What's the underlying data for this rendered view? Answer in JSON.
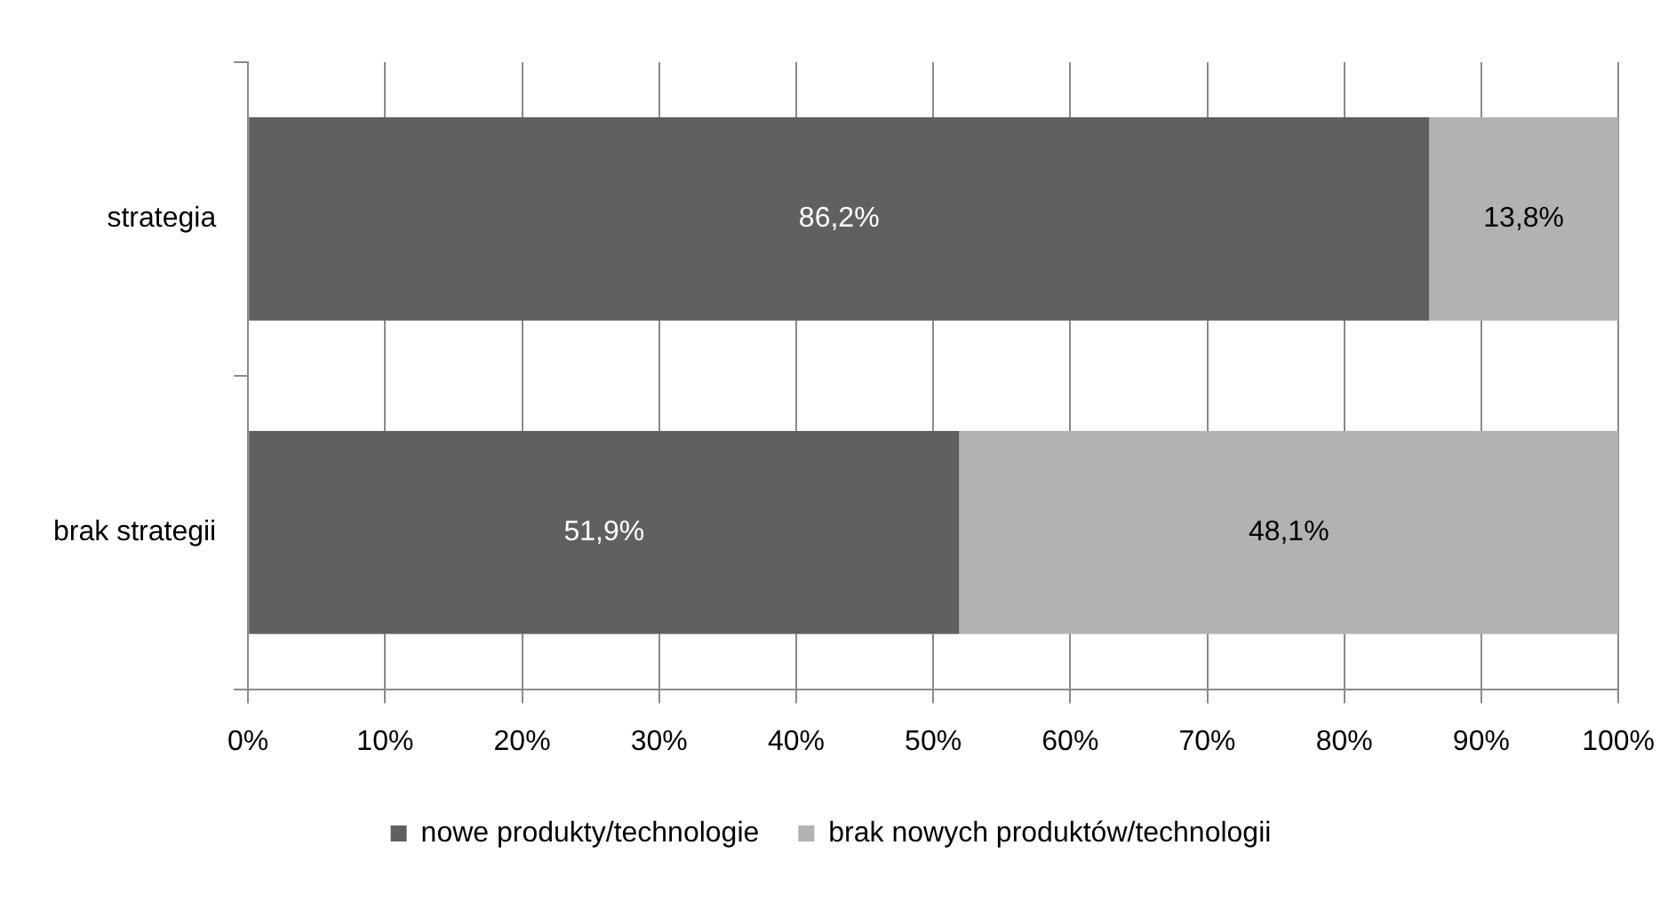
{
  "chart_data": {
    "type": "bar",
    "orientation": "horizontal",
    "stacked": true,
    "categories": [
      "strategia",
      "brak strategii"
    ],
    "series": [
      {
        "name": "nowe produkty/technologie",
        "color": "#606060",
        "values": [
          86.2,
          51.9
        ],
        "value_labels": [
          "86,2%",
          "51,9%"
        ]
      },
      {
        "name": "brak nowych produktów/technologii",
        "color": "#b2b2b2",
        "values": [
          13.8,
          48.1
        ],
        "value_labels": [
          "13,8%",
          "48,1%"
        ]
      }
    ],
    "xlim": [
      0,
      100
    ],
    "xticks": [
      {
        "value": 0,
        "label": "0%"
      },
      {
        "value": 10,
        "label": "10%"
      },
      {
        "value": 20,
        "label": "20%"
      },
      {
        "value": 30,
        "label": "30%"
      },
      {
        "value": 40,
        "label": "40%"
      },
      {
        "value": 50,
        "label": "50%"
      },
      {
        "value": 60,
        "label": "60%"
      },
      {
        "value": 70,
        "label": "70%"
      },
      {
        "value": 80,
        "label": "80%"
      },
      {
        "value": 90,
        "label": "90%"
      },
      {
        "value": 100,
        "label": "100%"
      }
    ],
    "grid": "x",
    "legend": "bottom"
  }
}
